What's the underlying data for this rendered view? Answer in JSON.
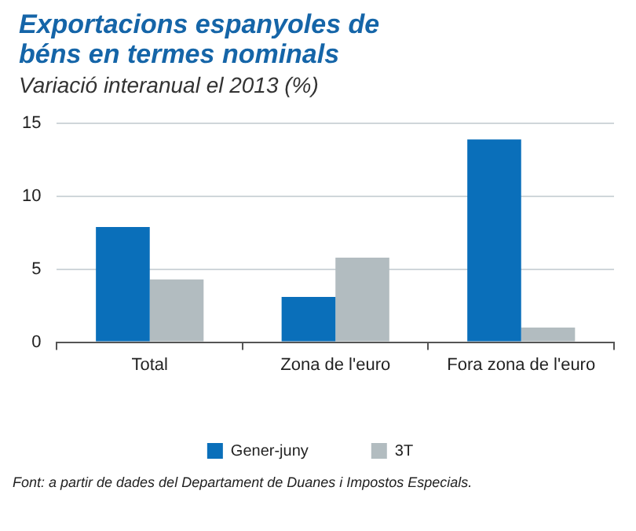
{
  "chart_data": {
    "type": "bar",
    "title": "Exportacions espanyoles de béns en termes nominals",
    "subtitle": "Variació interanual el 2013 (%)",
    "categories": [
      "Total",
      "Zona de l'euro",
      "Fora zona de l'euro"
    ],
    "series": [
      {
        "name": "Gener-juny",
        "color": "#0a6fba",
        "values": [
          7.9,
          3.1,
          13.9
        ]
      },
      {
        "name": "3T",
        "color": "#b2bcc0",
        "values": [
          4.3,
          5.8,
          1.0
        ]
      }
    ],
    "ylim": [
      0,
      15
    ],
    "yticks": [
      0,
      5,
      10,
      15
    ],
    "grid": "y",
    "legend": "bottom",
    "annotations": [
      "Font: a partir de dades del Departament de Duanes i Impostos Especials."
    ]
  }
}
